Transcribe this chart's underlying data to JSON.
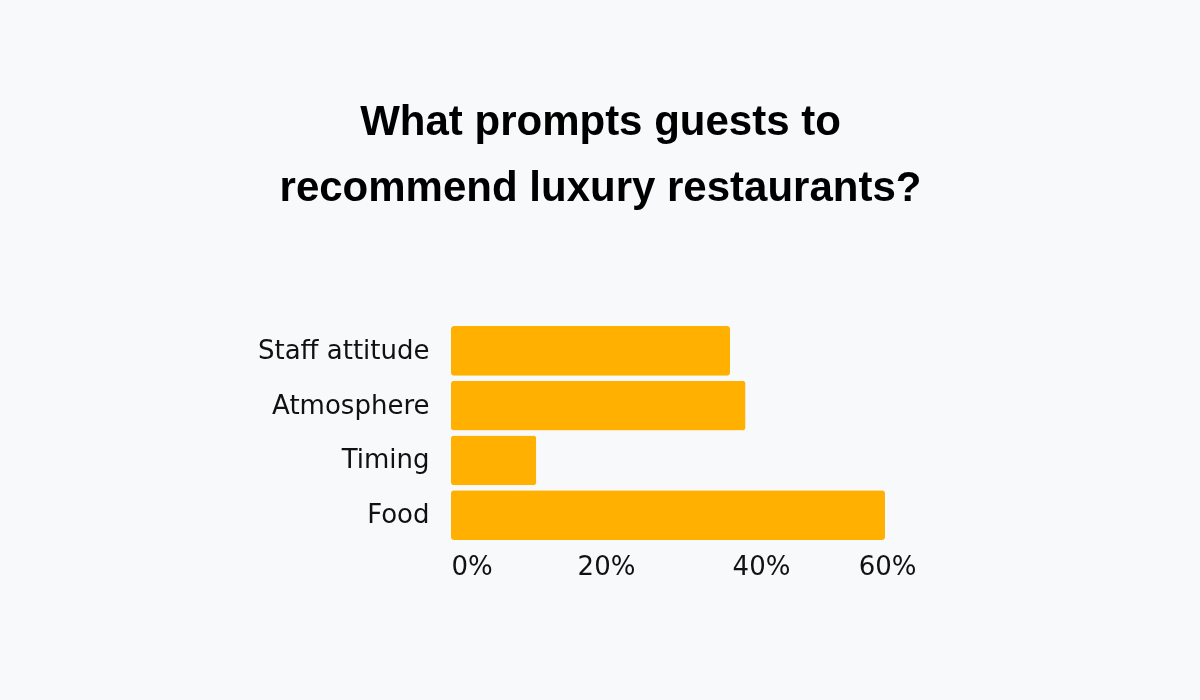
{
  "chart_data": {
    "type": "bar",
    "orientation": "horizontal",
    "title": "What prompts guests to recommend luxury restaurants?",
    "categories": [
      "Staff attitude",
      "Atmosphere",
      "Timing",
      "Food"
    ],
    "values": [
      36,
      38,
      11,
      56
    ],
    "color": "#ffb000",
    "xlim": [
      0,
      60
    ],
    "xticks": [
      {
        "value": 0,
        "label": "0%"
      },
      {
        "value": 20,
        "label": "20%"
      },
      {
        "value": 40,
        "label": "40%"
      },
      {
        "value": 60,
        "label": "60%"
      }
    ],
    "grid": false
  }
}
